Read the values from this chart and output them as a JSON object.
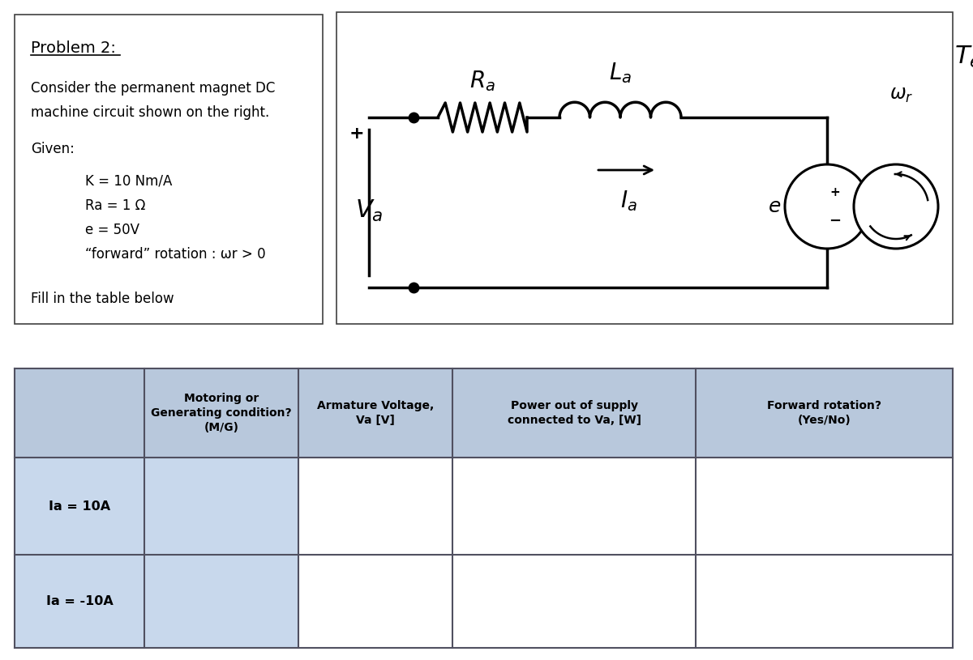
{
  "title": "Problem 2:",
  "problem_text": [
    "Consider the permanent magnet DC",
    "machine circuit shown on the right."
  ],
  "given_label": "Given:",
  "given_items": [
    "K = 10 Nm/A",
    "Ra = 1 Ω",
    "e = 50V",
    "“forward” rotation : ωr > 0"
  ],
  "fill_text": "Fill in the table below",
  "table_header": [
    "",
    "Motoring or\nGenerating condition?\n(M/G)",
    "Armature Voltage,\nVa [V]",
    "Power out of supply\nconnected to Va, [W]",
    "Forward rotation?\n(Yes/No)"
  ],
  "row_labels": [
    "Ia = 10A",
    "Ia = -10A"
  ],
  "header_bg": "#b8c8dc",
  "row_label_bg": "#c8d8ec",
  "data_cell_bg": "#ffffff",
  "border_color": "#505060",
  "text_color": "#1a1a1a",
  "background_color": "#ffffff",
  "circuit_box_color": "#404040",
  "wire_color": "#000000"
}
